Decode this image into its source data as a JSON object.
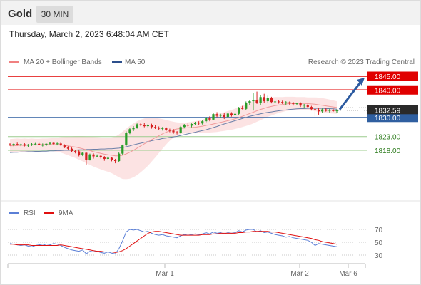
{
  "header": {
    "symbol": "Gold",
    "timeframe": "30 MIN"
  },
  "datetime": "Thursday, March 2, 2023 6:48:04 AM CET",
  "legend": {
    "ma20": {
      "label": "MA 20 + Bollinger Bands",
      "color": "#f08080"
    },
    "ma50": {
      "label": "MA 50",
      "color": "#2c4f8c"
    },
    "credit": "Research © 2023 Trading Central"
  },
  "rsi_legend": {
    "rsi": {
      "label": "RSI",
      "color": "#5b7fd6"
    },
    "ma9": {
      "label": "9MA",
      "color": "#e01010"
    }
  },
  "colors": {
    "up": "#2a9d2a",
    "down": "#d62020",
    "resistance": "#e00000",
    "support": "#2f5fa0",
    "target": "#2c5aa0"
  },
  "chart_data": [
    {
      "type": "candlestick",
      "price_range": [
        1808,
        1848
      ],
      "x_ticks": [
        "Mar 1",
        "Mar 2",
        "Mar 6"
      ],
      "last_price": "1832.59",
      "ohlc": [
        [
          1820.2,
          1820.6,
          1819.6,
          1820.0
        ],
        [
          1820.0,
          1820.5,
          1819.5,
          1820.3
        ],
        [
          1820.3,
          1820.8,
          1819.7,
          1819.9
        ],
        [
          1819.9,
          1820.4,
          1819.5,
          1820.2
        ],
        [
          1820.2,
          1820.6,
          1819.4,
          1819.7
        ],
        [
          1819.7,
          1820.3,
          1819.2,
          1820.1
        ],
        [
          1820.1,
          1820.6,
          1819.6,
          1820.2
        ],
        [
          1820.2,
          1820.7,
          1819.8,
          1820.4
        ],
        [
          1820.4,
          1820.7,
          1819.8,
          1819.9
        ],
        [
          1819.9,
          1820.5,
          1819.4,
          1820.0
        ],
        [
          1820.0,
          1820.5,
          1819.6,
          1820.4
        ],
        [
          1820.4,
          1820.9,
          1820.0,
          1820.7
        ],
        [
          1820.7,
          1821.0,
          1820.1,
          1820.3
        ],
        [
          1820.3,
          1820.8,
          1819.8,
          1820.5
        ],
        [
          1820.5,
          1820.9,
          1819.6,
          1819.8
        ],
        [
          1819.8,
          1820.2,
          1818.8,
          1819.0
        ],
        [
          1819.0,
          1819.5,
          1818.2,
          1818.6
        ],
        [
          1818.6,
          1819.0,
          1817.3,
          1817.7
        ],
        [
          1817.7,
          1818.2,
          1816.9,
          1817.6
        ],
        [
          1817.6,
          1818.0,
          1815.8,
          1816.4
        ],
        [
          1816.4,
          1817.4,
          1815.9,
          1817.1
        ],
        [
          1817.1,
          1817.3,
          1812.6,
          1814.5
        ],
        [
          1814.5,
          1816.8,
          1814.3,
          1816.5
        ],
        [
          1816.5,
          1816.9,
          1815.0,
          1815.8
        ],
        [
          1815.8,
          1816.5,
          1815.4,
          1816.0
        ],
        [
          1816.0,
          1816.4,
          1815.0,
          1815.4
        ],
        [
          1815.4,
          1815.9,
          1814.2,
          1814.9
        ],
        [
          1814.9,
          1815.8,
          1814.6,
          1815.3
        ],
        [
          1815.3,
          1815.6,
          1814.0,
          1814.4
        ],
        [
          1814.4,
          1814.9,
          1813.3,
          1814.1
        ],
        [
          1814.1,
          1817.2,
          1813.8,
          1816.8
        ],
        [
          1816.8,
          1820.1,
          1816.4,
          1819.8
        ],
        [
          1819.8,
          1824.9,
          1819.6,
          1824.4
        ],
        [
          1824.4,
          1826.1,
          1823.9,
          1825.7
        ],
        [
          1825.7,
          1826.8,
          1825.0,
          1826.1
        ],
        [
          1826.1,
          1827.8,
          1825.9,
          1827.5
        ],
        [
          1827.5,
          1828.1,
          1826.8,
          1827.2
        ],
        [
          1827.2,
          1827.9,
          1826.4,
          1826.8
        ],
        [
          1826.8,
          1827.6,
          1826.1,
          1827.3
        ],
        [
          1827.3,
          1827.7,
          1825.9,
          1826.5
        ],
        [
          1826.5,
          1827.1,
          1825.8,
          1826.3
        ],
        [
          1826.3,
          1826.7,
          1825.5,
          1825.9
        ],
        [
          1825.9,
          1826.5,
          1825.2,
          1826.1
        ],
        [
          1826.1,
          1826.4,
          1825.0,
          1825.4
        ],
        [
          1825.4,
          1825.9,
          1824.6,
          1825.2
        ],
        [
          1825.2,
          1825.8,
          1824.0,
          1824.6
        ],
        [
          1824.6,
          1825.0,
          1823.8,
          1824.4
        ],
        [
          1824.4,
          1826.9,
          1824.1,
          1826.5
        ],
        [
          1826.5,
          1827.6,
          1826.0,
          1827.3
        ],
        [
          1827.3,
          1828.0,
          1826.6,
          1827.0
        ],
        [
          1827.0,
          1827.8,
          1826.4,
          1827.6
        ],
        [
          1827.6,
          1828.4,
          1827.1,
          1828.1
        ],
        [
          1828.1,
          1828.6,
          1827.3,
          1827.8
        ],
        [
          1827.8,
          1828.9,
          1827.4,
          1828.6
        ],
        [
          1828.6,
          1830.2,
          1828.2,
          1829.8
        ],
        [
          1829.8,
          1830.4,
          1828.6,
          1829.2
        ],
        [
          1829.2,
          1831.6,
          1828.9,
          1831.2
        ],
        [
          1831.2,
          1831.9,
          1830.1,
          1830.6
        ],
        [
          1830.6,
          1831.3,
          1829.8,
          1831.0
        ],
        [
          1831.0,
          1831.5,
          1829.4,
          1830.2
        ],
        [
          1830.2,
          1831.7,
          1829.8,
          1831.4
        ],
        [
          1831.4,
          1831.9,
          1830.3,
          1830.8
        ],
        [
          1830.8,
          1831.6,
          1830.1,
          1831.3
        ],
        [
          1831.3,
          1833.8,
          1831.0,
          1833.5
        ],
        [
          1833.5,
          1834.2,
          1832.9,
          1833.1
        ],
        [
          1833.1,
          1835.8,
          1832.8,
          1835.4
        ],
        [
          1835.4,
          1836.2,
          1834.6,
          1835.9
        ],
        [
          1835.9,
          1838.8,
          1832.5,
          1836.4
        ],
        [
          1836.4,
          1839.4,
          1834.9,
          1835.2
        ],
        [
          1835.2,
          1838.1,
          1834.6,
          1837.4
        ],
        [
          1837.4,
          1838.6,
          1835.3,
          1835.9
        ],
        [
          1835.9,
          1837.9,
          1835.2,
          1837.2
        ],
        [
          1837.2,
          1837.5,
          1835.1,
          1835.6
        ],
        [
          1835.6,
          1836.3,
          1834.8,
          1835.8
        ],
        [
          1835.8,
          1836.2,
          1835.0,
          1835.6
        ],
        [
          1835.6,
          1836.1,
          1834.9,
          1835.3
        ],
        [
          1835.3,
          1835.9,
          1834.5,
          1835.5
        ],
        [
          1835.5,
          1835.8,
          1834.6,
          1835.1
        ],
        [
          1835.1,
          1835.6,
          1834.3,
          1834.9
        ],
        [
          1834.9,
          1835.4,
          1834.4,
          1835.2
        ],
        [
          1835.2,
          1835.5,
          1833.8,
          1834.3
        ],
        [
          1834.3,
          1834.9,
          1833.5,
          1834.6
        ],
        [
          1834.6,
          1834.9,
          1833.4,
          1833.8
        ],
        [
          1833.8,
          1834.2,
          1832.5,
          1833.0
        ],
        [
          1833.0,
          1833.6,
          1830.4,
          1832.6
        ],
        [
          1832.6,
          1833.4,
          1831.0,
          1832.2
        ],
        [
          1832.2,
          1833.2,
          1831.7,
          1832.9
        ],
        [
          1832.9,
          1833.3,
          1832.1,
          1832.4
        ],
        [
          1832.4,
          1833.1,
          1831.8,
          1832.8
        ],
        [
          1832.8,
          1833.2,
          1832.0,
          1832.3
        ],
        [
          1832.3,
          1832.9,
          1831.6,
          1832.59
        ]
      ],
      "ma20": [
        1819.6,
        1819.7,
        1819.8,
        1819.8,
        1819.9,
        1819.9,
        1820.0,
        1820.0,
        1820.0,
        1820.1,
        1820.1,
        1820.1,
        1820.1,
        1820.0,
        1820.0,
        1819.8,
        1819.6,
        1819.4,
        1819.2,
        1818.9,
        1818.6,
        1818.2,
        1817.9,
        1817.5,
        1817.2,
        1816.9,
        1816.6,
        1816.4,
        1816.2,
        1816.0,
        1816.0,
        1816.2,
        1816.7,
        1817.3,
        1818.0,
        1818.8,
        1819.6,
        1820.4,
        1821.1,
        1821.9,
        1822.6,
        1823.3,
        1824.0,
        1824.6,
        1825.1,
        1825.5,
        1825.8,
        1826.0,
        1826.1,
        1826.2,
        1826.3,
        1826.4,
        1826.6,
        1826.8,
        1827.1,
        1827.3,
        1827.6,
        1827.9,
        1828.2,
        1828.5,
        1828.8,
        1829.1,
        1829.5,
        1829.9,
        1830.4,
        1830.9,
        1831.4,
        1831.9,
        1832.4,
        1832.9,
        1833.3,
        1833.7,
        1834.0,
        1834.3,
        1834.5,
        1834.7,
        1834.9,
        1835.0,
        1835.1,
        1835.1,
        1835.1,
        1835.1,
        1835.0,
        1834.9,
        1834.8,
        1834.6,
        1834.4,
        1834.2,
        1834.0,
        1833.8,
        1833.6
      ],
      "bb_width": [
        2.5,
        2.5,
        2.5,
        2.4,
        2.4,
        2.3,
        2.3,
        2.2,
        2.2,
        2.2,
        2.2,
        2.3,
        2.4,
        2.6,
        2.8,
        3.1,
        3.4,
        3.7,
        4.0,
        4.3,
        4.6,
        4.9,
        5.2,
        5.4,
        5.6,
        5.8,
        6.0,
        6.2,
        6.5,
        7.0,
        7.8,
        8.6,
        9.2,
        9.6,
        9.8,
        9.8,
        9.6,
        9.2,
        8.7,
        8.0,
        7.2,
        6.3,
        5.4,
        4.5,
        3.6,
        2.9,
        2.4,
        2.1,
        2.0,
        2.0,
        2.1,
        2.2,
        2.3,
        2.4,
        2.6,
        2.8,
        3.0,
        3.2,
        3.3,
        3.4,
        3.5,
        3.6,
        3.7,
        3.8,
        3.9,
        4.0,
        4.1,
        4.1,
        4.0,
        3.9,
        3.7,
        3.5,
        3.3,
        3.1,
        2.9,
        2.7,
        2.6,
        2.5,
        2.4,
        2.3,
        2.3,
        2.3,
        2.3,
        2.4,
        2.5,
        2.6,
        2.6,
        2.6,
        2.5,
        2.4,
        2.3
      ],
      "ma50": [
        1817.2,
        1817.3,
        1817.3,
        1817.4,
        1817.4,
        1817.5,
        1817.5,
        1817.6,
        1817.6,
        1817.7,
        1817.7,
        1817.8,
        1817.8,
        1817.9,
        1817.9,
        1818.0,
        1818.0,
        1818.1,
        1818.1,
        1818.2,
        1818.2,
        1818.3,
        1818.3,
        1818.4,
        1818.4,
        1818.5,
        1818.5,
        1818.6,
        1818.6,
        1818.7,
        1818.8,
        1819.0,
        1819.3,
        1819.6,
        1820.0,
        1820.3,
        1820.6,
        1820.9,
        1821.2,
        1821.5,
        1821.8,
        1822.0,
        1822.3,
        1822.5,
        1822.7,
        1822.9,
        1823.1,
        1823.4,
        1823.7,
        1824.0,
        1824.3,
        1824.6,
        1824.9,
        1825.2,
        1825.5,
        1825.9,
        1826.3,
        1826.7,
        1827.2,
        1827.6,
        1828.0,
        1828.4,
        1828.8,
        1829.2,
        1829.6,
        1830.0,
        1830.4,
        1830.7,
        1831.0,
        1831.3,
        1831.6,
        1831.8,
        1832.0,
        1832.2,
        1832.4,
        1832.6,
        1832.7,
        1832.9,
        1833.0,
        1833.1,
        1833.2,
        1833.2,
        1833.3,
        1833.3,
        1833.3,
        1833.3,
        1833.3,
        1833.2,
        1833.2,
        1833.1,
        1833.0
      ],
      "levels": [
        {
          "value": 1845,
          "label": "1845.00",
          "style": "resistance"
        },
        {
          "value": 1840,
          "label": "1840.00",
          "style": "resistance"
        },
        {
          "value": 1830,
          "label": "1830.00",
          "style": "pivot"
        },
        {
          "value": 1823,
          "label": "1823.00",
          "style": "support"
        },
        {
          "value": 1818,
          "label": "1818.00",
          "style": "support"
        }
      ],
      "target": {
        "from": 1832.6,
        "to": 1845
      }
    },
    {
      "type": "line",
      "name": "RSI",
      "y_ticks": [
        70,
        50,
        30
      ],
      "ylim": [
        20,
        80
      ],
      "series": [
        {
          "name": "RSI",
          "values": [
            48,
            47,
            46,
            45,
            46,
            44,
            43,
            45,
            46,
            47,
            45,
            46,
            48,
            47,
            45,
            42,
            40,
            38,
            37,
            36,
            38,
            32,
            36,
            35,
            36,
            34,
            33,
            35,
            33,
            32,
            40,
            52,
            66,
            70,
            69,
            70,
            68,
            66,
            67,
            64,
            62,
            61,
            62,
            60,
            59,
            58,
            57,
            60,
            62,
            61,
            62,
            63,
            62,
            63,
            65,
            63,
            66,
            64,
            65,
            63,
            65,
            64,
            65,
            68,
            66,
            69,
            70,
            70,
            66,
            68,
            65,
            66,
            64,
            62,
            61,
            60,
            58,
            59,
            57,
            56,
            55,
            54,
            53,
            50,
            45,
            48,
            47,
            46,
            45,
            44,
            43
          ]
        },
        {
          "name": "9MA",
          "values": [
            47,
            47,
            46,
            46,
            46,
            46,
            45,
            45,
            45,
            45,
            45,
            45,
            45,
            45,
            46,
            45,
            44,
            43,
            42,
            41,
            40,
            39,
            38,
            37,
            36,
            36,
            35,
            35,
            35,
            34,
            35,
            37,
            40,
            44,
            48,
            52,
            56,
            60,
            64,
            66,
            67,
            67,
            66,
            65,
            64,
            63,
            62,
            61,
            61,
            61,
            61,
            61,
            61,
            62,
            62,
            62,
            63,
            63,
            64,
            64,
            64,
            64,
            64,
            65,
            65,
            66,
            66,
            67,
            67,
            67,
            67,
            67,
            66,
            66,
            65,
            64,
            63,
            62,
            61,
            60,
            59,
            58,
            57,
            56,
            54,
            53,
            51,
            50,
            49,
            48,
            47
          ]
        }
      ]
    }
  ]
}
